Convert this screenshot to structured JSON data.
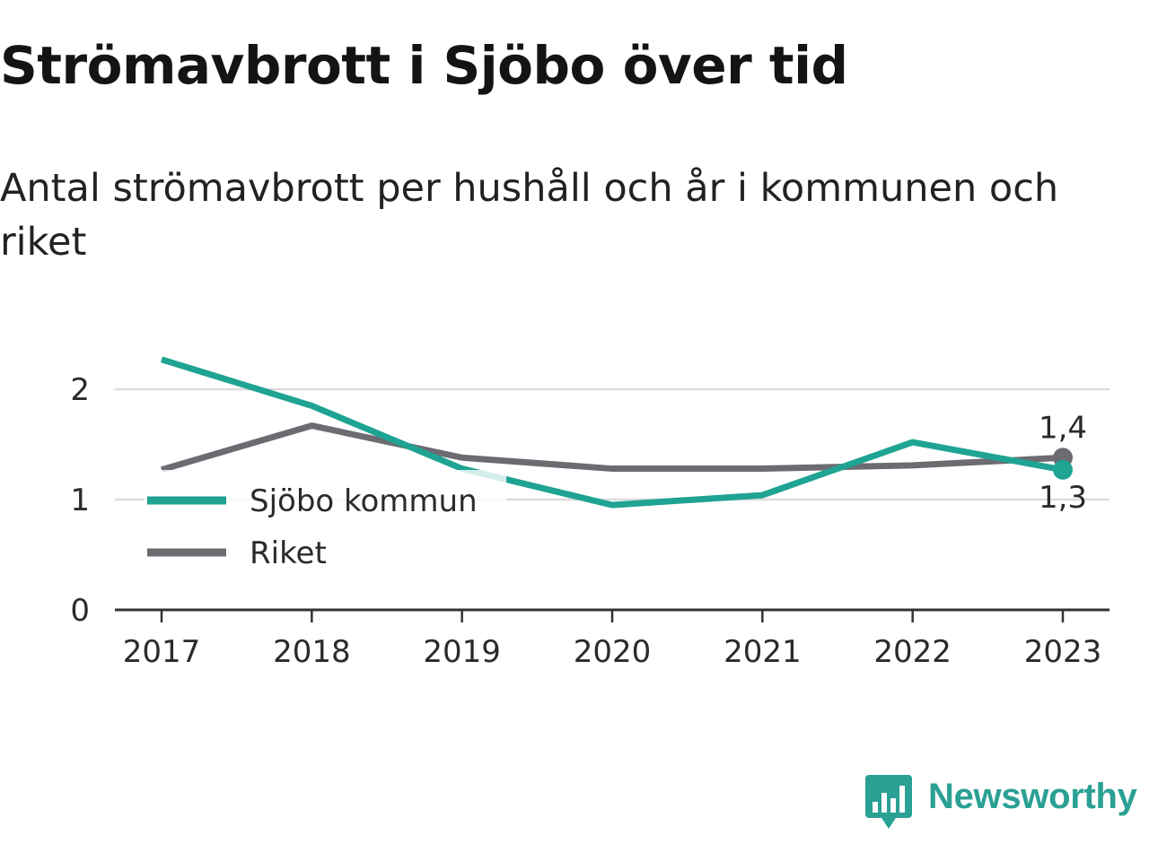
{
  "title": "Strömavbrott i Sjöbo över tid",
  "subtitle": "Antal strömavbrott per hushåll och år i kommunen och riket",
  "brand": {
    "name": "Newsworthy",
    "color": "#2ba094",
    "icon": "chart-bubble-icon"
  },
  "chart_data": {
    "type": "line",
    "title": "Strömavbrott i Sjöbo över tid",
    "subtitle": "Antal strömavbrott per hushåll och år i kommunen och riket",
    "xlabel": "",
    "ylabel": "",
    "x": [
      "2017",
      "2018",
      "2019",
      "2020",
      "2021",
      "2022",
      "2023"
    ],
    "ylim": [
      0,
      2.35
    ],
    "yticks": [
      0,
      1,
      2
    ],
    "grid": true,
    "legend_position": "left, inside plot",
    "series": [
      {
        "name": "Sjöbo kommun",
        "color": "#1fa393",
        "values": [
          2.27,
          1.85,
          1.28,
          0.95,
          1.04,
          1.52,
          1.27
        ],
        "end_label": "1,3"
      },
      {
        "name": "Riket",
        "color": "#6d6b72",
        "values": [
          1.27,
          1.67,
          1.38,
          1.28,
          1.28,
          1.31,
          1.38
        ],
        "end_label": "1,4"
      }
    ]
  }
}
